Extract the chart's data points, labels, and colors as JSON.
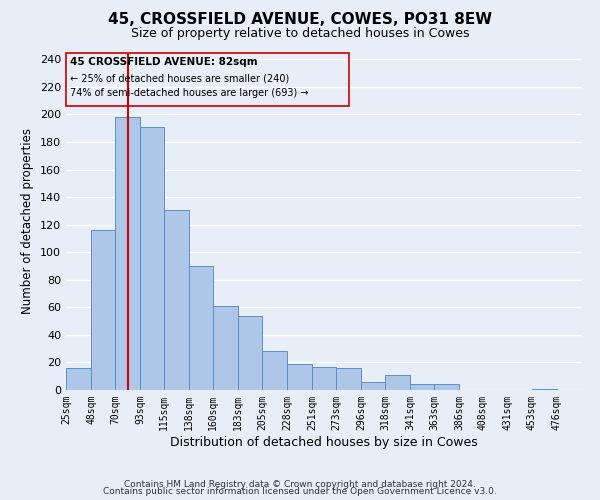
{
  "title": "45, CROSSFIELD AVENUE, COWES, PO31 8EW",
  "subtitle": "Size of property relative to detached houses in Cowes",
  "xlabel": "Distribution of detached houses by size in Cowes",
  "ylabel": "Number of detached properties",
  "bar_left_edges": [
    25,
    48,
    70,
    93,
    115,
    138,
    160,
    183,
    205,
    228,
    251,
    273,
    296,
    318,
    341,
    363,
    386,
    408,
    431,
    453
  ],
  "bar_heights": [
    16,
    116,
    198,
    191,
    131,
    90,
    61,
    54,
    28,
    19,
    17,
    16,
    6,
    11,
    4,
    4,
    0,
    0,
    0,
    1
  ],
  "bar_widths": [
    23,
    22,
    23,
    22,
    23,
    22,
    23,
    22,
    23,
    23,
    22,
    23,
    22,
    23,
    22,
    23,
    22,
    23,
    22,
    23
  ],
  "tick_labels": [
    "25sqm",
    "48sqm",
    "70sqm",
    "93sqm",
    "115sqm",
    "138sqm",
    "160sqm",
    "183sqm",
    "205sqm",
    "228sqm",
    "251sqm",
    "273sqm",
    "296sqm",
    "318sqm",
    "341sqm",
    "363sqm",
    "386sqm",
    "408sqm",
    "431sqm",
    "453sqm",
    "476sqm"
  ],
  "tick_positions": [
    25,
    48,
    70,
    93,
    115,
    138,
    160,
    183,
    205,
    228,
    251,
    273,
    296,
    318,
    341,
    363,
    386,
    408,
    431,
    453,
    476
  ],
  "bar_color": "#aec6e8",
  "bar_edge_color": "#5b8fc9",
  "vline_x": 82,
  "vline_color": "#cc0000",
  "annotation_title": "45 CROSSFIELD AVENUE: 82sqm",
  "annotation_line1": "← 25% of detached houses are smaller (240)",
  "annotation_line2": "74% of semi-detached houses are larger (693) →",
  "ylim": [
    0,
    245
  ],
  "xlim": [
    25,
    499
  ],
  "yticks": [
    0,
    20,
    40,
    60,
    80,
    100,
    120,
    140,
    160,
    180,
    200,
    220,
    240
  ],
  "footer1": "Contains HM Land Registry data © Crown copyright and database right 2024.",
  "footer2": "Contains public sector information licensed under the Open Government Licence v3.0.",
  "background_color": "#e8eef7",
  "grid_color": "#ffffff"
}
